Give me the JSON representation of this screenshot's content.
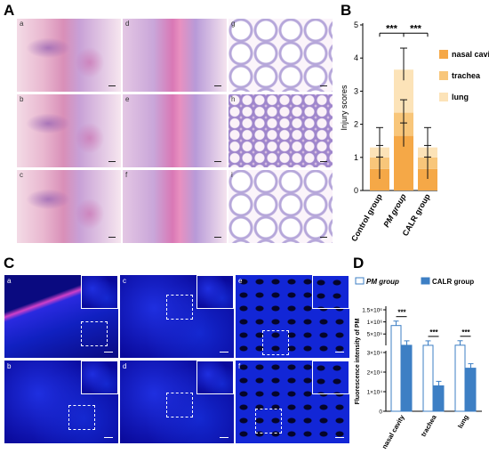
{
  "panels": {
    "A": {
      "label": "A",
      "subpanels": [
        "a",
        "b",
        "c",
        "d",
        "e",
        "f",
        "g",
        "h",
        "i"
      ]
    },
    "B": {
      "label": "B"
    },
    "C": {
      "label": "C",
      "subpanels": [
        "a",
        "b",
        "c",
        "d",
        "e",
        "f"
      ]
    },
    "D": {
      "label": "D"
    }
  },
  "chart_data": [
    {
      "type": "bar",
      "stacked": true,
      "ylabel": "Injury scores",
      "ylim": [
        0,
        5
      ],
      "yticks": [
        "0",
        "1",
        "2",
        "3",
        "4",
        "5"
      ],
      "categories": [
        "Control group",
        "PM group",
        "CALR group"
      ],
      "series": [
        {
          "name": "nasal cavity",
          "values": [
            0.65,
            1.65,
            0.65
          ],
          "color": "#f5a847"
        },
        {
          "name": "trachea",
          "values": [
            0.35,
            0.7,
            0.35
          ],
          "color": "#f8c67a"
        },
        {
          "name": "lung",
          "values": [
            0.3,
            1.3,
            0.3
          ],
          "color": "#fce3b8"
        }
      ],
      "errors": [
        0.6,
        0.65,
        0.6
      ],
      "significance": [
        "***",
        "***"
      ],
      "legend": "right"
    },
    {
      "type": "bar",
      "ylabel": "Fluorescence intensity of PM",
      "yticks_upper": [
        "5×10⁵",
        "1×10⁶",
        "1.5×10⁶"
      ],
      "yticks_lower": [
        "0",
        "1×10⁴",
        "2×10⁴",
        "3×10⁴"
      ],
      "axis_break": "3×10⁴",
      "categories": [
        "nasal cavity",
        "trachea",
        "lung"
      ],
      "series": [
        {
          "name": "PM group",
          "values": [
            850000.0,
            33000.0,
            38000.0
          ],
          "color": "#ffffff"
        },
        {
          "name": "CALR group",
          "values": [
            34000.0,
            13000.0,
            22000.0
          ],
          "color": "#3d7fc4"
        }
      ],
      "significance": [
        "***",
        "***",
        "***"
      ],
      "legend": "top"
    }
  ]
}
